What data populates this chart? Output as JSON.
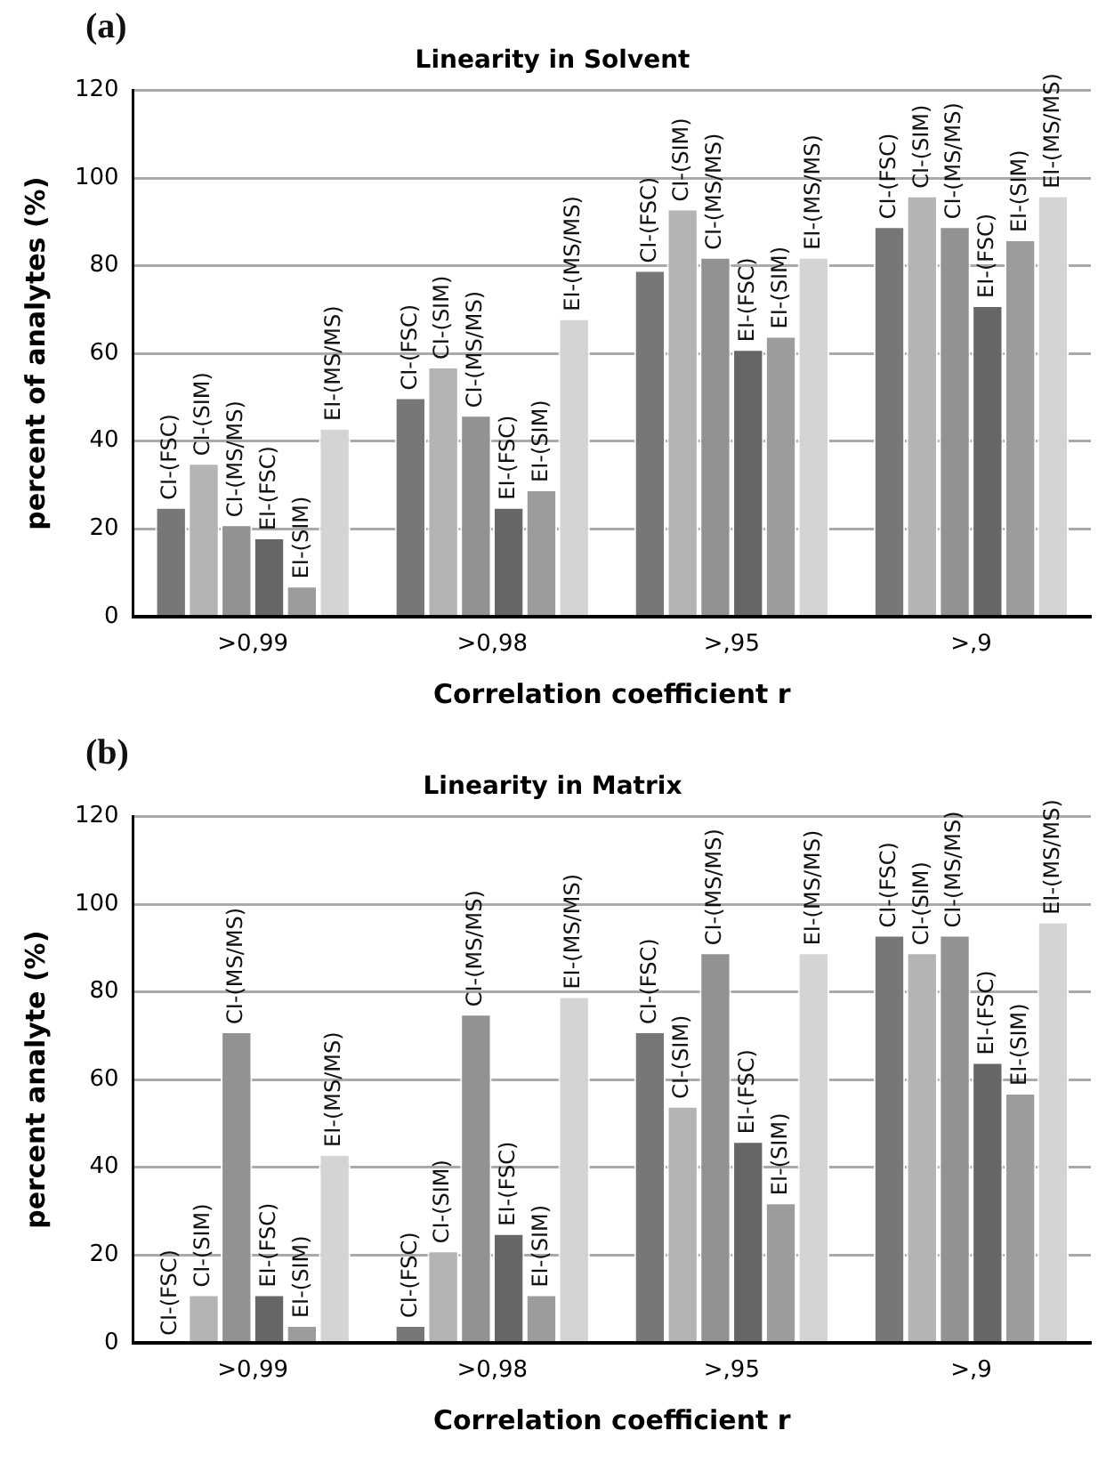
{
  "chart_data": [
    {
      "type": "bar",
      "title": "Linearity in Solvent",
      "xlabel": "Correlation coefficient r",
      "ylabel": "percent of analytes (%)",
      "annotations": [
        "(a)"
      ],
      "categories": [
        ">0,99",
        ">0,98",
        ">,95",
        ">,9"
      ],
      "ylim": [
        0,
        120
      ],
      "yticks": [
        0,
        20,
        40,
        60,
        80,
        100,
        120
      ],
      "grid": "y",
      "legend": false,
      "series": [
        {
          "name": "CI-(FSC)",
          "color": "#777777",
          "values": [
            25,
            50,
            79,
            89
          ]
        },
        {
          "name": "CI-(SIM)",
          "color": "#b4b4b4",
          "values": [
            35,
            57,
            93,
            96
          ]
        },
        {
          "name": "CI-(MS/MS)",
          "color": "#929292",
          "values": [
            21,
            46,
            82,
            89
          ]
        },
        {
          "name": "EI-(FSC)",
          "color": "#666666",
          "values": [
            18,
            25,
            61,
            71
          ]
        },
        {
          "name": "EI-(SIM)",
          "color": "#9c9c9c",
          "values": [
            7,
            29,
            64,
            86
          ]
        },
        {
          "name": "EI-(MS/MS)",
          "color": "#d4d4d4",
          "values": [
            43,
            68,
            82,
            96
          ]
        }
      ]
    },
    {
      "type": "bar",
      "title": "Linearity in Matrix",
      "xlabel": "Correlation coefficient r",
      "ylabel": "percent analyte (%)",
      "annotations": [
        "(b)"
      ],
      "categories": [
        ">0,99",
        ">0,98",
        ">,95",
        ">,9"
      ],
      "ylim": [
        0,
        120
      ],
      "yticks": [
        0,
        20,
        40,
        60,
        80,
        100,
        120
      ],
      "grid": "y",
      "legend": false,
      "series": [
        {
          "name": "CI-(FSC)",
          "color": "#777777",
          "values": [
            0,
            4,
            71,
            93
          ]
        },
        {
          "name": "CI-(SIM)",
          "color": "#b4b4b4",
          "values": [
            11,
            21,
            54,
            89
          ]
        },
        {
          "name": "CI-(MS/MS)",
          "color": "#929292",
          "values": [
            71,
            75,
            89,
            93
          ]
        },
        {
          "name": "EI-(FSC)",
          "color": "#666666",
          "values": [
            11,
            25,
            46,
            64
          ]
        },
        {
          "name": "EI-(SIM)",
          "color": "#9c9c9c",
          "values": [
            4,
            11,
            32,
            57
          ]
        },
        {
          "name": "EI-(MS/MS)",
          "color": "#d4d4d4",
          "values": [
            43,
            79,
            89,
            96
          ]
        }
      ]
    }
  ]
}
